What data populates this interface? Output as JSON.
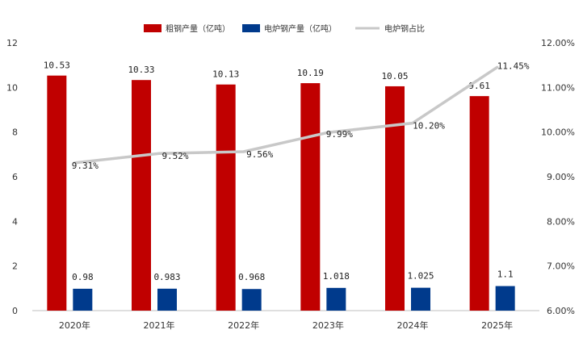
{
  "chart_data": {
    "type": "bar+line",
    "categories": [
      "2020年",
      "2021年",
      "2022年",
      "2023年",
      "2024年",
      "2025年"
    ],
    "series": [
      {
        "name": "粗钢产量（亿吨）",
        "type": "bar",
        "axis": "left",
        "color": "#C00000",
        "values": [
          10.53,
          10.33,
          10.13,
          10.19,
          10.05,
          9.61
        ],
        "labels": [
          "10.53",
          "10.33",
          "10.13",
          "10.19",
          "10.05",
          "9.61"
        ]
      },
      {
        "name": "电炉钢产量（亿吨）",
        "type": "bar",
        "axis": "left",
        "color": "#003A8C",
        "values": [
          0.98,
          0.983,
          0.968,
          1.018,
          1.025,
          1.1
        ],
        "labels": [
          "0.98",
          "0.983",
          "0.968",
          "1.018",
          "1.025",
          "1.1"
        ]
      },
      {
        "name": "电炉钢占比",
        "type": "line",
        "axis": "right",
        "color": "#C8C8C8",
        "values": [
          9.31,
          9.52,
          9.56,
          9.99,
          10.2,
          11.45
        ],
        "labels": [
          "9.31%",
          "9.52%",
          "9.56%",
          "9.99%",
          "10.20%",
          "11.45%"
        ]
      }
    ],
    "y_left": {
      "range": [
        0,
        12
      ],
      "ticks": [
        "0",
        "2",
        "4",
        "6",
        "8",
        "10",
        "12"
      ]
    },
    "y_right": {
      "range": [
        6,
        12
      ],
      "ticks": [
        "6.00%",
        "7.00%",
        "8.00%",
        "9.00%",
        "10.00%",
        "11.00%",
        "12.00%"
      ]
    },
    "grid": false,
    "legend_position": "top"
  }
}
